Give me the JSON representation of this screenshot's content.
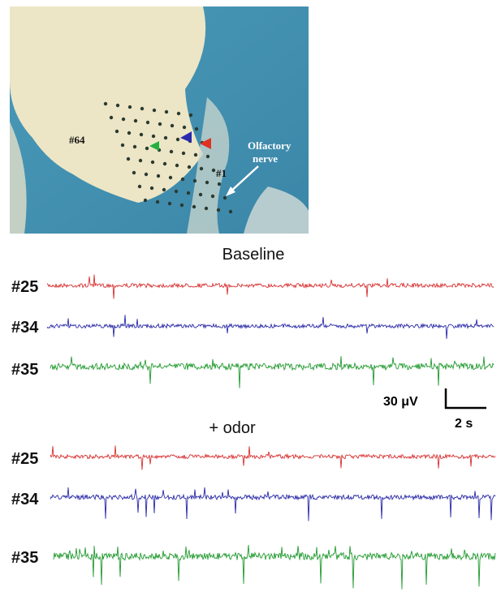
{
  "photo": {
    "labels": [
      "#64",
      "#1"
    ],
    "nerve_label": [
      "Olfactory",
      "nerve"
    ]
  },
  "panels": [
    {
      "title": "Baseline",
      "channels": [
        "#25",
        "#34",
        "#35"
      ]
    },
    {
      "title": "+ odor",
      "channels": [
        "#25",
        "#34",
        "#35"
      ]
    }
  ],
  "scale_bar": {
    "amplitude": "30 μV",
    "time": "2 s"
  }
}
